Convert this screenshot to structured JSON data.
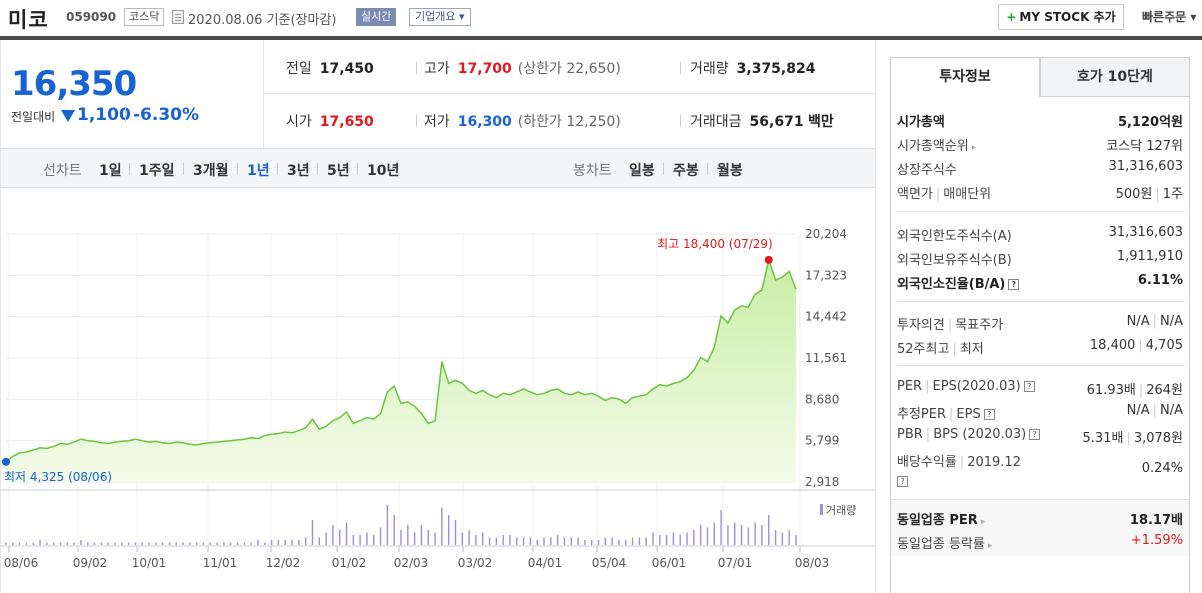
{
  "header": {
    "name": "미코",
    "code": "059090",
    "market": "코스닥",
    "date": "2020.08.06 기준(장마감)",
    "live_tag": "실시간",
    "company_tag": "기업개요 ▾",
    "mystock_label": "MY STOCK 추가",
    "mystock_plus": "+",
    "quick_order": "빠른주문 ▾"
  },
  "price": {
    "current": "16,350",
    "change_label": "전일대비",
    "change_value": "1,100",
    "change_pct": "-6.30%"
  },
  "stats": {
    "prev_label": "전일",
    "prev": "17,450",
    "high_label": "고가",
    "high": "17,700",
    "upper_limit": "(상한가 22,650)",
    "volume_label": "거래량",
    "volume": "3,375,824",
    "open_label": "시가",
    "open": "17,650",
    "low_label": "저가",
    "low": "16,300",
    "lower_limit": "(하한가 12,250)",
    "amount_label": "거래대금",
    "amount": "56,671",
    "amount_unit": "백만"
  },
  "period": {
    "line_label": "선차트",
    "line_items": [
      "1일",
      "1주일",
      "3개월",
      "1년",
      "3년",
      "5년",
      "10년"
    ],
    "active": "1년",
    "candle_label": "봉차트",
    "candle_items": [
      "일봉",
      "주봉",
      "월봉"
    ]
  },
  "chart_data": {
    "type": "area",
    "yticks": [
      "20,204",
      "17,323",
      "14,442",
      "11,561",
      "8,680",
      "5,799",
      "2,918"
    ],
    "ylim": [
      2918,
      20204
    ],
    "xticks": [
      "08/06",
      "09/02",
      "10/01",
      "11/01",
      "12/02",
      "01/02",
      "02/03",
      "03/02",
      "04/01",
      "05/04",
      "06/01",
      "07/01",
      "08/03"
    ],
    "max_label": "최고 18,400 (07/29)",
    "min_label": "최저 4,325 (08/06)",
    "volume_legend": "거래량",
    "colors": {
      "line": "#6cc33e",
      "fill_top": "#c9eea4",
      "fill_bottom": "#f3fbea",
      "volume": "#9b8fd8",
      "max": "#e0181d",
      "min": "#1763d2"
    },
    "series": [
      {
        "values": [
          4325,
          4700,
          4950,
          5000,
          5150,
          5300,
          5250,
          5400,
          5600,
          5550,
          5700,
          5900,
          5800,
          5750,
          5650,
          5600,
          5700,
          5750,
          5800,
          5900,
          5800,
          5700,
          5750,
          5650,
          5600,
          5700,
          5650,
          5550,
          5500,
          5600,
          5650,
          5700,
          5750,
          5800,
          5850,
          5900,
          6000,
          5950,
          6150,
          6250,
          6300,
          6400,
          6350,
          6500,
          6700,
          7300,
          6600,
          6800,
          7200,
          7400,
          7800,
          7000,
          7200,
          7400,
          7300,
          7700,
          9200,
          9600,
          8400,
          8500,
          8200,
          7700,
          7000,
          7200,
          11300,
          9800,
          10000,
          9800,
          9300,
          9100,
          9300,
          9000,
          8800,
          9100,
          9000,
          9200,
          9400,
          9200,
          9000,
          9100,
          9300,
          9400,
          9100,
          9000,
          9200,
          9000,
          9100,
          8900,
          8600,
          8800,
          8700,
          8400,
          8800,
          8900,
          9000,
          9400,
          9700,
          9600,
          9800,
          9900,
          10200,
          10700,
          11600,
          11300,
          12300,
          14500,
          14000,
          14900,
          15200,
          15100,
          16000,
          16300,
          18400,
          17000,
          17200,
          17600,
          16350
        ]
      }
    ],
    "volume": [
      1,
      1,
      1,
      1,
      1,
      2,
      1,
      1,
      1,
      1,
      1,
      2,
      1,
      1,
      1,
      1,
      1,
      1,
      1,
      1,
      1,
      1,
      1,
      1,
      1,
      1,
      1,
      1,
      1,
      1,
      1,
      1,
      1,
      1,
      1,
      1,
      1,
      2,
      1,
      2,
      2,
      2,
      2,
      2,
      3,
      10,
      3,
      5,
      8,
      6,
      9,
      4,
      4,
      5,
      4,
      7,
      16,
      12,
      6,
      8,
      5,
      8,
      6,
      5,
      15,
      12,
      10,
      5,
      6,
      4,
      5,
      3,
      3,
      4,
      4,
      3,
      3,
      3,
      2,
      3,
      3,
      4,
      3,
      3,
      3,
      2,
      2,
      2,
      3,
      3,
      2,
      2,
      3,
      3,
      3,
      5,
      4,
      4,
      5,
      4,
      5,
      6,
      8,
      7,
      9,
      14,
      8,
      9,
      8,
      7,
      9,
      8,
      12,
      6,
      5,
      6,
      4
    ]
  },
  "info": {
    "tab_invest": "투자정보",
    "tab_hoga": "호가 10단계",
    "rows": {
      "mktcap_label": "시가총액",
      "mktcap": "5,120억원",
      "mktrank_label": "시가총액순위",
      "mktrank": "코스닥 127위",
      "shares_label": "상장주식수",
      "shares": "31,316,603",
      "face_label": "액면가",
      "trade_unit_label": "매매단위",
      "face": "500원",
      "trade_unit": "1주",
      "frlimit_label": "외국인한도주식수(A)",
      "frlimit": "31,316,603",
      "frhold_label": "외국인보유주식수(B)",
      "frhold": "1,911,910",
      "frratio_label": "외국인소진율(B/A)",
      "frratio": "6.11%",
      "opinion_label": "투자의견",
      "target_label": "목표주가",
      "opinion": "N/A",
      "target": "N/A",
      "w52_label": "52주최고",
      "w52_low_label": "최저",
      "w52_high": "18,400",
      "w52_low": "4,705",
      "per_label": "PER",
      "eps_label": "EPS(2020.03)",
      "per": "61.93배",
      "eps": "264원",
      "eper_label": "추정PER",
      "eeps_label": "EPS",
      "eper": "N/A",
      "eeps": "N/A",
      "pbr_label": "PBR",
      "bps_label": "BPS (2020.03)",
      "pbr": "5.31배",
      "bps": "3,078원",
      "div_label": "배당수익률",
      "div_year": "2019.12",
      "div": "0.24%",
      "indper_label": "동일업종 PER",
      "indper": "18.17배",
      "indchg_label": "동일업종 등락률",
      "indchg": "+1.59%"
    }
  }
}
